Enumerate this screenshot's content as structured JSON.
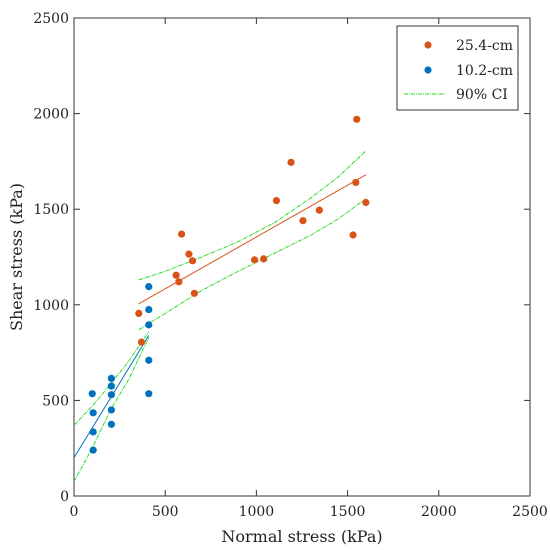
{
  "chart_data": {
    "type": "scatter",
    "xlabel": "Normal stress (kPa)",
    "ylabel": "Shear stress (kPa)",
    "xlim": [
      0,
      2500
    ],
    "ylim": [
      0,
      2500
    ],
    "x_ticks": [
      "0",
      "500",
      "1000",
      "1500",
      "2000",
      "2500"
    ],
    "y_ticks": [
      "0",
      "500",
      "1000",
      "1500",
      "2000",
      "2500"
    ],
    "grid": false,
    "legend_position": "top-right",
    "series": [
      {
        "name": "25.4-cm",
        "color": "#d95319",
        "points": [
          [
            355,
            955
          ],
          [
            370,
            805
          ],
          [
            560,
            1155
          ],
          [
            575,
            1120
          ],
          [
            590,
            1370
          ],
          [
            630,
            1265
          ],
          [
            650,
            1230
          ],
          [
            660,
            1060
          ],
          [
            990,
            1235
          ],
          [
            1040,
            1240
          ],
          [
            1110,
            1545
          ],
          [
            1190,
            1745
          ],
          [
            1255,
            1440
          ],
          [
            1345,
            1495
          ],
          [
            1530,
            1365
          ],
          [
            1545,
            1640
          ],
          [
            1550,
            1970
          ],
          [
            1600,
            1535
          ]
        ],
        "fit": [
          [
            355,
            1005
          ],
          [
            1600,
            1680
          ]
        ]
      },
      {
        "name": "10.2-cm",
        "color": "#0072bd",
        "points": [
          [
            100,
            535
          ],
          [
            105,
            435
          ],
          [
            105,
            335
          ],
          [
            105,
            240
          ],
          [
            205,
            615
          ],
          [
            205,
            575
          ],
          [
            205,
            530
          ],
          [
            205,
            450
          ],
          [
            205,
            375
          ],
          [
            410,
            1095
          ],
          [
            410,
            975
          ],
          [
            410,
            895
          ],
          [
            410,
            710
          ],
          [
            410,
            535
          ]
        ],
        "fit": [
          [
            0,
            200
          ],
          [
            410,
            840
          ]
        ]
      }
    ],
    "ci": {
      "name": "90% CI",
      "color": "#22dd22",
      "curves": [
        [
          [
            0,
            370
          ],
          [
            100,
            470
          ],
          [
            200,
            585
          ],
          [
            300,
            705
          ],
          [
            410,
            860
          ]
        ],
        [
          [
            0,
            75
          ],
          [
            100,
            250
          ],
          [
            200,
            450
          ],
          [
            300,
            610
          ],
          [
            410,
            830
          ]
        ],
        [
          [
            355,
            1130
          ],
          [
            500,
            1175
          ],
          [
            700,
            1250
          ],
          [
            900,
            1330
          ],
          [
            1100,
            1430
          ],
          [
            1300,
            1560
          ],
          [
            1450,
            1670
          ],
          [
            1600,
            1805
          ]
        ],
        [
          [
            355,
            870
          ],
          [
            500,
            955
          ],
          [
            700,
            1075
          ],
          [
            900,
            1175
          ],
          [
            1100,
            1270
          ],
          [
            1300,
            1365
          ],
          [
            1450,
            1450
          ],
          [
            1600,
            1555
          ]
        ]
      ]
    }
  }
}
